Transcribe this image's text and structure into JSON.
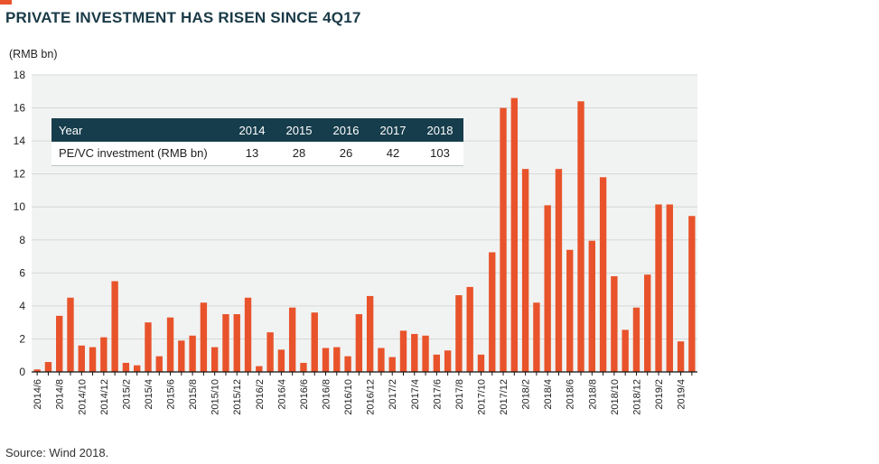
{
  "title": "PRIVATE INVESTMENT HAS RISEN SINCE 4Q17",
  "source": "Source: Wind 2018.",
  "colors": {
    "accent": "#e8532b",
    "bar": "#e8532b",
    "table_header": "#163d4c",
    "plot_bg": "#f1f3f2"
  },
  "inset_table": {
    "header": [
      "Year",
      "2014",
      "2015",
      "2016",
      "2017",
      "2018"
    ],
    "row": [
      "PE/VC investment (RMB bn)",
      "13",
      "28",
      "26",
      "42",
      "103"
    ]
  },
  "chart_data": {
    "type": "bar",
    "title": "PRIVATE INVESTMENT HAS RISEN SINCE 4Q17",
    "ylabel": "(RMB bn)",
    "xlabel": "",
    "ylim": [
      0,
      18
    ],
    "yticks": [
      0,
      2,
      4,
      6,
      8,
      10,
      12,
      14,
      16,
      18
    ],
    "grid": true,
    "categories": [
      "2014/6",
      "2014/7",
      "2014/8",
      "2014/9",
      "2014/10",
      "2014/11",
      "2014/12",
      "2015/1",
      "2015/2",
      "2015/3",
      "2015/4",
      "2015/5",
      "2015/6",
      "2015/7",
      "2015/8",
      "2015/9",
      "2015/10",
      "2015/11",
      "2015/12",
      "2016/1",
      "2016/2",
      "2016/3",
      "2016/4",
      "2016/5",
      "2016/6",
      "2016/7",
      "2016/8",
      "2016/9",
      "2016/10",
      "2016/11",
      "2016/12",
      "2017/1",
      "2017/2",
      "2017/3",
      "2017/4",
      "2017/5",
      "2017/6",
      "2017/7",
      "2017/8",
      "2017/9",
      "2017/10",
      "2017/11",
      "2017/12",
      "2018/1",
      "2018/2",
      "2018/3",
      "2018/4",
      "2018/5",
      "2018/6",
      "2018/7",
      "2018/8",
      "2018/9",
      "2018/10",
      "2018/11",
      "2018/12",
      "2019/1",
      "2019/2",
      "2019/3",
      "2019/4",
      "2019/5"
    ],
    "tick_labels": [
      "2014/6",
      "2014/8",
      "2014/10",
      "2014/12",
      "2015/2",
      "2015/4",
      "2015/6",
      "2015/8",
      "2015/10",
      "2015/12",
      "2016/2",
      "2016/4",
      "2016/6",
      "2016/8",
      "2016/10",
      "2016/12",
      "2017/2",
      "2017/4",
      "2017/6",
      "2017/8",
      "2017/10",
      "2017/12",
      "2018/2",
      "2018/4",
      "2018/6",
      "2018/8",
      "2018/10",
      "2018/12",
      "2019/2",
      "2019/4"
    ],
    "values": [
      0.15,
      0.6,
      3.4,
      4.5,
      1.6,
      1.5,
      2.1,
      5.5,
      0.55,
      0.4,
      3.0,
      0.95,
      3.3,
      1.9,
      2.2,
      4.2,
      1.5,
      3.5,
      3.5,
      4.5,
      0.35,
      2.4,
      1.35,
      3.9,
      0.55,
      3.6,
      1.45,
      1.5,
      0.95,
      3.5,
      4.6,
      1.45,
      0.9,
      2.5,
      2.3,
      2.2,
      1.05,
      1.3,
      4.65,
      5.15,
      1.05,
      7.25,
      16.0,
      16.6,
      12.3,
      4.2,
      10.1,
      12.3,
      7.4,
      16.4,
      7.95,
      11.8,
      5.8,
      2.55,
      3.9,
      5.9,
      10.15,
      10.15,
      1.85,
      9.45
    ]
  }
}
